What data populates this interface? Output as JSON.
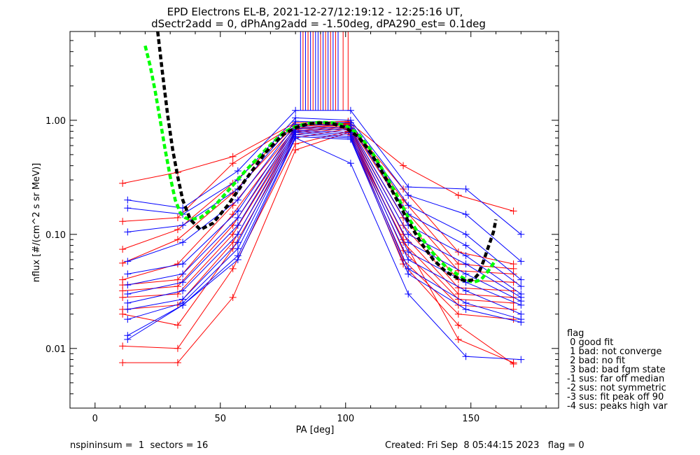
{
  "chart_data": {
    "type": "line",
    "title": "EPD Electrons EL-B, 2021-12-27/12:19:12 - 12:25:16 UT,",
    "subtitle": "dSectr2add = 0, dPhAng2add = -1.50deg, dPA290_est=   0.1deg",
    "xlabel": "PA [deg]",
    "ylabel": "nflux [#/(cm^2 s sr MeV)]",
    "xlim": [
      -10,
      185
    ],
    "ylim": [
      0.003,
      6
    ],
    "yscale": "log",
    "x_ticks": [
      "0",
      "50",
      "100",
      "150"
    ],
    "x_tick_values": [
      0,
      50,
      100,
      150
    ],
    "y_ticks": [
      "0.01",
      "0.10",
      "1.00"
    ],
    "y_tick_values": [
      0.01,
      0.1,
      1.0
    ],
    "colors": {
      "red": "#ff0000",
      "blue": "#0000ff",
      "black": "#000000",
      "green": "#00ff00"
    },
    "series": [
      {
        "color": "red",
        "x": [
          11,
          33,
          55,
          80,
          101,
          123,
          145,
          167
        ],
        "y": [
          0.28,
          0.35,
          0.48,
          0.95,
          0.98,
          0.4,
          0.22,
          0.16
        ]
      },
      {
        "color": "red",
        "x": [
          11,
          33,
          55,
          80,
          101,
          123,
          145,
          167
        ],
        "y": [
          0.13,
          0.14,
          0.42,
          0.92,
          0.96,
          0.25,
          0.07,
          0.055
        ]
      },
      {
        "color": "red",
        "x": [
          11,
          33,
          55,
          80,
          101,
          123,
          145,
          167
        ],
        "y": [
          0.074,
          0.11,
          0.28,
          0.9,
          0.95,
          0.2,
          0.055,
          0.05
        ]
      },
      {
        "color": "red",
        "x": [
          11,
          33,
          55,
          80,
          101,
          123,
          145,
          167
        ],
        "y": [
          0.056,
          0.09,
          0.23,
          0.88,
          0.94,
          0.17,
          0.048,
          0.045
        ]
      },
      {
        "color": "red",
        "x": [
          11,
          33,
          55,
          80,
          101,
          123,
          145,
          167
        ],
        "y": [
          0.04,
          0.055,
          0.18,
          0.85,
          0.93,
          0.14,
          0.04,
          0.038
        ]
      },
      {
        "color": "red",
        "x": [
          11,
          33,
          55,
          80,
          101,
          123,
          145,
          167
        ],
        "y": [
          0.036,
          0.04,
          0.15,
          0.83,
          0.92,
          0.12,
          0.034,
          0.032
        ]
      },
      {
        "color": "red",
        "x": [
          11,
          33,
          55,
          80,
          101,
          123,
          145,
          167
        ],
        "y": [
          0.032,
          0.035,
          0.12,
          0.8,
          0.9,
          0.1,
          0.03,
          0.028
        ]
      },
      {
        "color": "red",
        "x": [
          11,
          33,
          55,
          80,
          101,
          123,
          145,
          167
        ],
        "y": [
          0.028,
          0.03,
          0.1,
          0.78,
          0.88,
          0.085,
          0.027,
          0.025
        ]
      },
      {
        "color": "red",
        "x": [
          11,
          33,
          55,
          80,
          101,
          123,
          145,
          167
        ],
        "y": [
          0.022,
          0.024,
          0.085,
          0.75,
          0.86,
          0.072,
          0.024,
          0.022
        ]
      },
      {
        "color": "red",
        "x": [
          11,
          33,
          55,
          80,
          101,
          123,
          145,
          167
        ],
        "y": [
          0.02,
          0.016,
          0.075,
          0.7,
          0.84,
          0.06,
          0.02,
          0.018
        ]
      },
      {
        "color": "red",
        "x": [
          11,
          33,
          55,
          80,
          101,
          123,
          145,
          167
        ],
        "y": [
          0.0105,
          0.01,
          0.05,
          0.62,
          0.8,
          0.055,
          0.016,
          0.0073
        ]
      },
      {
        "color": "red",
        "x": [
          11,
          33,
          55,
          80,
          101,
          123,
          145,
          167
        ],
        "y": [
          0.0075,
          0.0075,
          0.028,
          0.55,
          0.78,
          0.09,
          0.012,
          0.0075
        ]
      },
      {
        "color": "blue",
        "x": [
          13,
          35,
          57,
          80,
          102,
          125,
          148,
          170
        ],
        "y": [
          0.2,
          0.17,
          0.36,
          1.22,
          1.22,
          0.26,
          0.25,
          0.1
        ]
      },
      {
        "color": "blue",
        "x": [
          13,
          35,
          57,
          80,
          102,
          125,
          148,
          170
        ],
        "y": [
          0.17,
          0.15,
          0.3,
          1.05,
          1.0,
          0.22,
          0.15,
          0.058
        ]
      },
      {
        "color": "blue",
        "x": [
          13,
          35,
          57,
          80,
          102,
          125,
          148,
          170
        ],
        "y": [
          0.105,
          0.12,
          0.25,
          0.98,
          0.95,
          0.18,
          0.1,
          0.04
        ]
      },
      {
        "color": "blue",
        "x": [
          13,
          35,
          57,
          80,
          102,
          125,
          148,
          170
        ],
        "y": [
          0.058,
          0.085,
          0.2,
          0.92,
          0.9,
          0.15,
          0.08,
          0.035
        ]
      },
      {
        "color": "blue",
        "x": [
          13,
          35,
          57,
          80,
          102,
          125,
          148,
          170
        ],
        "y": [
          0.045,
          0.055,
          0.16,
          0.88,
          0.85,
          0.12,
          0.065,
          0.03
        ]
      },
      {
        "color": "blue",
        "x": [
          13,
          35,
          57,
          80,
          102,
          125,
          148,
          170
        ],
        "y": [
          0.036,
          0.045,
          0.14,
          0.85,
          0.82,
          0.1,
          0.055,
          0.028
        ]
      },
      {
        "color": "blue",
        "x": [
          13,
          35,
          57,
          80,
          102,
          125,
          148,
          170
        ],
        "y": [
          0.03,
          0.038,
          0.12,
          0.82,
          0.78,
          0.085,
          0.045,
          0.026
        ]
      },
      {
        "color": "blue",
        "x": [
          13,
          35,
          57,
          80,
          102,
          125,
          148,
          170
        ],
        "y": [
          0.025,
          0.032,
          0.1,
          0.8,
          0.75,
          0.07,
          0.038,
          0.024
        ]
      },
      {
        "color": "blue",
        "x": [
          13,
          35,
          57,
          80,
          102,
          125,
          148,
          170
        ],
        "y": [
          0.022,
          0.027,
          0.085,
          0.78,
          0.72,
          0.06,
          0.032,
          0.02
        ]
      },
      {
        "color": "blue",
        "x": [
          13,
          35,
          57,
          80,
          102,
          125,
          148,
          170
        ],
        "y": [
          0.018,
          0.025,
          0.075,
          0.75,
          0.7,
          0.05,
          0.025,
          0.018
        ]
      },
      {
        "color": "blue",
        "x": [
          13,
          35,
          57,
          80,
          102,
          125,
          148,
          170
        ],
        "y": [
          0.013,
          0.024,
          0.065,
          0.72,
          0.68,
          0.045,
          0.022,
          0.017
        ]
      },
      {
        "color": "blue",
        "x": [
          13,
          35,
          57,
          80,
          102,
          125,
          148,
          170
        ],
        "y": [
          0.012,
          0.024,
          0.06,
          0.7,
          0.42,
          0.03,
          0.0085,
          0.008
        ]
      }
    ],
    "fit_black": {
      "color": "black",
      "x": [
        25,
        27,
        29,
        31,
        33,
        35,
        38,
        42,
        47,
        53,
        60,
        68,
        75,
        80,
        85,
        90,
        95,
        100,
        105,
        110,
        115,
        120,
        125,
        130,
        135,
        140,
        145,
        148,
        151,
        153,
        155,
        157,
        159,
        160
      ],
      "y": [
        6.0,
        2.5,
        1.1,
        0.55,
        0.32,
        0.2,
        0.135,
        0.11,
        0.125,
        0.18,
        0.3,
        0.52,
        0.75,
        0.86,
        0.93,
        0.95,
        0.93,
        0.86,
        0.72,
        0.52,
        0.34,
        0.21,
        0.13,
        0.085,
        0.06,
        0.047,
        0.041,
        0.039,
        0.04,
        0.045,
        0.058,
        0.078,
        0.105,
        0.135
      ]
    },
    "fit_green": {
      "color": "green",
      "x": [
        20,
        22,
        24,
        26,
        28,
        30,
        32,
        34,
        36,
        38,
        42,
        47,
        53,
        60,
        68,
        75,
        80,
        85,
        90,
        95,
        100,
        105,
        110,
        115,
        120,
        125,
        130,
        135,
        140,
        145,
        148,
        151,
        154,
        157,
        160
      ],
      "y": [
        4.5,
        3.0,
        1.8,
        1.0,
        0.55,
        0.32,
        0.2,
        0.155,
        0.14,
        0.135,
        0.14,
        0.17,
        0.24,
        0.36,
        0.55,
        0.78,
        0.88,
        0.94,
        0.96,
        0.95,
        0.9,
        0.76,
        0.55,
        0.36,
        0.23,
        0.14,
        0.095,
        0.068,
        0.052,
        0.044,
        0.04,
        0.038,
        0.04,
        0.048,
        0.06
      ]
    },
    "spikes": {
      "blue": [
        82,
        84,
        86,
        88,
        89,
        91,
        93,
        95,
        97
      ],
      "red": [
        83,
        85,
        87,
        90,
        92,
        94,
        96,
        99,
        101
      ],
      "top": 6.0,
      "base": 1.22
    },
    "legend": {
      "title": "flag",
      "entries": [
        " 0 good fit",
        " 1 bad: not converge",
        " 2 bad: no fit",
        " 3 bad: bad fgm state",
        "-1 sus: far off median",
        "-2 sus: not symmetric",
        "-3 sus: fit peak off 90",
        "-4 sus: peaks high var"
      ]
    }
  },
  "footer": {
    "left": "nspininsum =  1  sectors = 16",
    "right": "Created: Fri Sep  8 05:44:15 2023   flag = 0"
  }
}
